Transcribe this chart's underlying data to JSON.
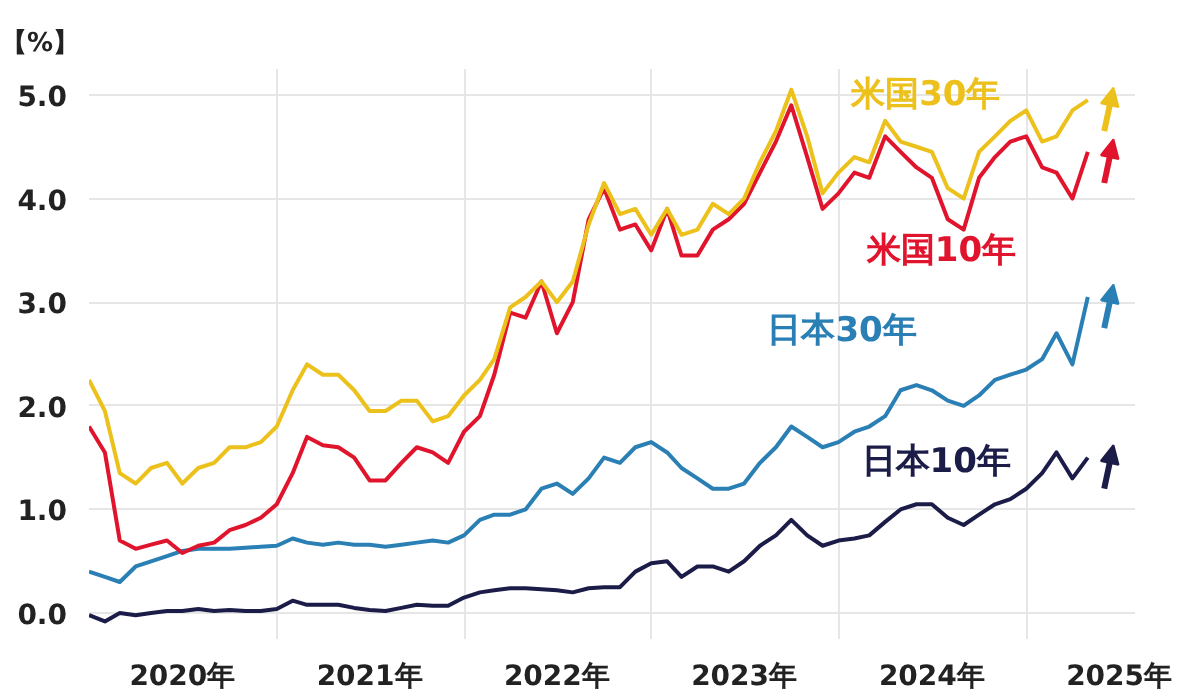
{
  "chart_data": {
    "type": "line",
    "ylabel": "【%】",
    "x": [
      "2020-01",
      "2020-02",
      "2020-03",
      "2020-04",
      "2020-05",
      "2020-06",
      "2020-07",
      "2020-08",
      "2020-09",
      "2020-10",
      "2020-11",
      "2020-12",
      "2021-01",
      "2021-02",
      "2021-03",
      "2021-04",
      "2021-05",
      "2021-06",
      "2021-07",
      "2021-08",
      "2021-09",
      "2021-10",
      "2021-11",
      "2021-12",
      "2022-01",
      "2022-02",
      "2022-03",
      "2022-04",
      "2022-05",
      "2022-06",
      "2022-07",
      "2022-08",
      "2022-09",
      "2022-10",
      "2022-11",
      "2022-12",
      "2023-01",
      "2023-02",
      "2023-03",
      "2023-04",
      "2023-05",
      "2023-06",
      "2023-07",
      "2023-08",
      "2023-09",
      "2023-10",
      "2023-11",
      "2023-12",
      "2024-01",
      "2024-02",
      "2024-03",
      "2024-04",
      "2024-05",
      "2024-06",
      "2024-07",
      "2024-08",
      "2024-09",
      "2024-10",
      "2024-11",
      "2024-12",
      "2025-01",
      "2025-02",
      "2025-03",
      "2025-04",
      "2025-05"
    ],
    "series": [
      {
        "name": "米国30年",
        "color": "#ecc11c",
        "values": [
          2.25,
          1.95,
          1.35,
          1.25,
          1.4,
          1.45,
          1.25,
          1.4,
          1.45,
          1.6,
          1.6,
          1.65,
          1.8,
          2.15,
          2.4,
          2.3,
          2.3,
          2.15,
          1.95,
          1.95,
          2.05,
          2.05,
          1.85,
          1.9,
          2.1,
          2.25,
          2.45,
          2.95,
          3.05,
          3.2,
          3.0,
          3.2,
          3.75,
          4.15,
          3.85,
          3.9,
          3.65,
          3.9,
          3.65,
          3.7,
          3.95,
          3.85,
          4.0,
          4.35,
          4.65,
          5.05,
          4.6,
          4.05,
          4.25,
          4.4,
          4.35,
          4.75,
          4.55,
          4.5,
          4.45,
          4.1,
          4.0,
          4.45,
          4.6,
          4.75,
          4.85,
          4.55,
          4.6,
          4.85,
          4.95
        ]
      },
      {
        "name": "米国10年",
        "color": "#e0142c",
        "values": [
          1.8,
          1.55,
          0.7,
          0.62,
          0.66,
          0.7,
          0.58,
          0.65,
          0.68,
          0.8,
          0.85,
          0.92,
          1.05,
          1.35,
          1.7,
          1.62,
          1.6,
          1.5,
          1.28,
          1.28,
          1.45,
          1.6,
          1.55,
          1.45,
          1.75,
          1.9,
          2.3,
          2.9,
          2.85,
          3.2,
          2.7,
          3.0,
          3.8,
          4.1,
          3.7,
          3.75,
          3.5,
          3.9,
          3.45,
          3.45,
          3.7,
          3.8,
          3.95,
          4.25,
          4.55,
          4.9,
          4.4,
          3.9,
          4.05,
          4.25,
          4.2,
          4.6,
          4.45,
          4.3,
          4.2,
          3.8,
          3.7,
          4.2,
          4.4,
          4.55,
          4.6,
          4.3,
          4.25,
          4.0,
          4.45
        ]
      },
      {
        "name": "日本30年",
        "color": "#2a7fb4",
        "values": [
          0.4,
          0.35,
          0.3,
          0.45,
          0.5,
          0.55,
          0.6,
          0.62,
          0.62,
          0.62,
          0.63,
          0.64,
          0.65,
          0.72,
          0.68,
          0.66,
          0.68,
          0.66,
          0.66,
          0.64,
          0.66,
          0.68,
          0.7,
          0.68,
          0.75,
          0.9,
          0.95,
          0.95,
          1.0,
          1.2,
          1.25,
          1.15,
          1.3,
          1.5,
          1.45,
          1.6,
          1.65,
          1.55,
          1.4,
          1.3,
          1.2,
          1.2,
          1.25,
          1.45,
          1.6,
          1.8,
          1.7,
          1.6,
          1.65,
          1.75,
          1.8,
          1.9,
          2.15,
          2.2,
          2.15,
          2.05,
          2.0,
          2.1,
          2.25,
          2.3,
          2.35,
          2.45,
          2.7,
          2.4,
          3.05
        ]
      },
      {
        "name": "日本10年",
        "color": "#1c1c48",
        "values": [
          -0.02,
          -0.08,
          0.0,
          -0.02,
          0.0,
          0.02,
          0.02,
          0.04,
          0.02,
          0.03,
          0.02,
          0.02,
          0.04,
          0.12,
          0.08,
          0.08,
          0.08,
          0.05,
          0.03,
          0.02,
          0.05,
          0.08,
          0.07,
          0.07,
          0.15,
          0.2,
          0.22,
          0.24,
          0.24,
          0.23,
          0.22,
          0.2,
          0.24,
          0.25,
          0.25,
          0.4,
          0.48,
          0.5,
          0.35,
          0.45,
          0.45,
          0.4,
          0.5,
          0.65,
          0.75,
          0.9,
          0.75,
          0.65,
          0.7,
          0.72,
          0.75,
          0.88,
          1.0,
          1.05,
          1.05,
          0.92,
          0.85,
          0.95,
          1.05,
          1.1,
          1.2,
          1.35,
          1.55,
          1.3,
          1.5
        ]
      }
    ],
    "xlim": [
      "2020-01-01",
      "2025-08-01"
    ],
    "xticks": [
      {
        "value": "2020-07-01",
        "label": "2020年"
      },
      {
        "value": "2021-01-01",
        "label": null
      },
      {
        "value": "2021-07-01",
        "label": "2021年"
      },
      {
        "value": "2022-01-01",
        "label": null
      },
      {
        "value": "2022-07-01",
        "label": "2022年"
      },
      {
        "value": "2023-01-01",
        "label": null
      },
      {
        "value": "2023-07-01",
        "label": "2023年"
      },
      {
        "value": "2024-01-01",
        "label": null
      },
      {
        "value": "2024-07-01",
        "label": "2024年"
      },
      {
        "value": "2025-01-01",
        "label": null
      },
      {
        "value": "2025-07-01",
        "label": "2025年"
      }
    ],
    "ylim": [
      -0.25,
      5.25
    ],
    "yticks": [
      {
        "value": 0,
        "label": "0.0"
      },
      {
        "value": 1,
        "label": "1.0"
      },
      {
        "value": 2,
        "label": "2.0"
      },
      {
        "value": 3,
        "label": "3.0"
      },
      {
        "value": 4,
        "label": "4.0"
      },
      {
        "value": 5,
        "label": "5.0"
      }
    ],
    "grid": true
  }
}
